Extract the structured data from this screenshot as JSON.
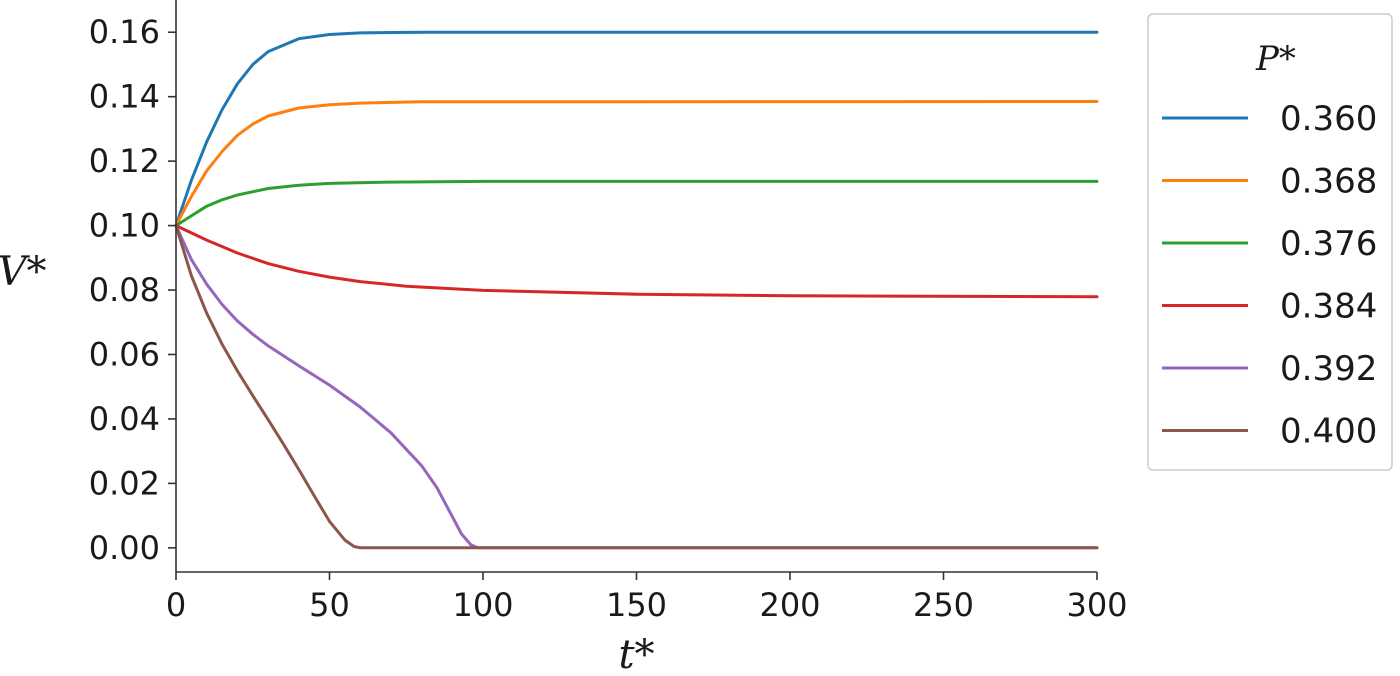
{
  "chart_data": {
    "type": "line",
    "xlabel": "t*",
    "ylabel": "V*",
    "xlim": [
      0,
      300
    ],
    "ylim": [
      -0.0075,
      0.17
    ],
    "xticks": [
      0,
      50,
      100,
      150,
      200,
      250,
      300
    ],
    "xtick_labels": [
      "0",
      "50",
      "100",
      "150",
      "200",
      "250",
      "300"
    ],
    "yticks": [
      0.0,
      0.02,
      0.04,
      0.06,
      0.08,
      0.1,
      0.12,
      0.14,
      0.16
    ],
    "ytick_labels": [
      "0.00",
      "0.02",
      "0.04",
      "0.06",
      "0.08",
      "0.10",
      "0.12",
      "0.14",
      "0.16"
    ],
    "grid": false,
    "legend_title": "P*",
    "legend_position": "right, outside plot",
    "series": [
      {
        "name": "0.360",
        "color": "#1f77b4",
        "points": [
          [
            0,
            0.1
          ],
          [
            5,
            0.114
          ],
          [
            10,
            0.126
          ],
          [
            15,
            0.136
          ],
          [
            20,
            0.144
          ],
          [
            25,
            0.15
          ],
          [
            30,
            0.154
          ],
          [
            40,
            0.158
          ],
          [
            50,
            0.1593
          ],
          [
            60,
            0.1598
          ],
          [
            80,
            0.16
          ],
          [
            300,
            0.16
          ]
        ]
      },
      {
        "name": "0.368",
        "color": "#ff7f0e",
        "points": [
          [
            0,
            0.1
          ],
          [
            5,
            0.109
          ],
          [
            10,
            0.117
          ],
          [
            15,
            0.123
          ],
          [
            20,
            0.128
          ],
          [
            25,
            0.1315
          ],
          [
            30,
            0.134
          ],
          [
            40,
            0.1365
          ],
          [
            50,
            0.1375
          ],
          [
            60,
            0.138
          ],
          [
            80,
            0.1384
          ],
          [
            300,
            0.1385
          ]
        ]
      },
      {
        "name": "0.376",
        "color": "#2ca02c",
        "points": [
          [
            0,
            0.1
          ],
          [
            5,
            0.103
          ],
          [
            10,
            0.106
          ],
          [
            15,
            0.108
          ],
          [
            20,
            0.1095
          ],
          [
            30,
            0.1115
          ],
          [
            40,
            0.1125
          ],
          [
            50,
            0.1131
          ],
          [
            70,
            0.1135
          ],
          [
            100,
            0.1137
          ],
          [
            300,
            0.1137
          ]
        ]
      },
      {
        "name": "0.384",
        "color": "#d62728",
        "points": [
          [
            0,
            0.1
          ],
          [
            10,
            0.0955
          ],
          [
            20,
            0.0915
          ],
          [
            30,
            0.0882
          ],
          [
            40,
            0.0858
          ],
          [
            50,
            0.084
          ],
          [
            60,
            0.0826
          ],
          [
            75,
            0.0812
          ],
          [
            100,
            0.0799
          ],
          [
            150,
            0.0787
          ],
          [
            200,
            0.0782
          ],
          [
            300,
            0.0779
          ]
        ]
      },
      {
        "name": "0.392",
        "color": "#9467bd",
        "points": [
          [
            0,
            0.1
          ],
          [
            5,
            0.0895
          ],
          [
            10,
            0.0818
          ],
          [
            15,
            0.0755
          ],
          [
            20,
            0.0704
          ],
          [
            25,
            0.0663
          ],
          [
            30,
            0.0627
          ],
          [
            40,
            0.0565
          ],
          [
            50,
            0.0505
          ],
          [
            60,
            0.0437
          ],
          [
            70,
            0.0357
          ],
          [
            80,
            0.0255
          ],
          [
            85,
            0.0187
          ],
          [
            90,
            0.0097
          ],
          [
            93,
            0.0043
          ],
          [
            96,
            0.001
          ],
          [
            98,
            0.0001
          ],
          [
            100,
            0.0
          ],
          [
            300,
            0.0
          ]
        ]
      },
      {
        "name": "0.400",
        "color": "#8c564b",
        "points": [
          [
            0,
            0.1
          ],
          [
            5,
            0.0845
          ],
          [
            10,
            0.0728
          ],
          [
            15,
            0.0632
          ],
          [
            20,
            0.0549
          ],
          [
            25,
            0.0472
          ],
          [
            30,
            0.0398
          ],
          [
            35,
            0.0322
          ],
          [
            40,
            0.0243
          ],
          [
            45,
            0.0162
          ],
          [
            50,
            0.0082
          ],
          [
            55,
            0.0024
          ],
          [
            58,
            0.0004
          ],
          [
            60,
            0.0
          ],
          [
            300,
            0.0
          ]
        ]
      }
    ]
  }
}
